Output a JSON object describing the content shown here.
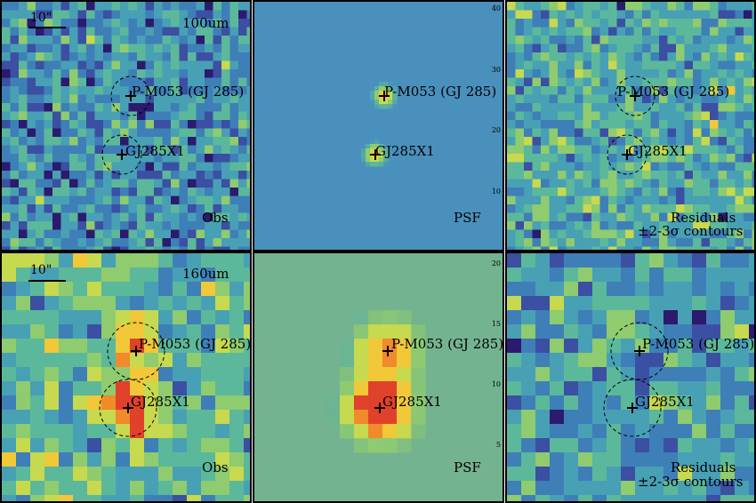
{
  "palette": [
    "#2b1a6e",
    "#3b4fa3",
    "#3e7fb8",
    "#48a0b5",
    "#5cb89a",
    "#8fcb6f",
    "#c6d94f",
    "#f0c838",
    "#f08a2a",
    "#e0412a"
  ],
  "panels": [
    {
      "id": "p100-obs",
      "seed": 11,
      "kind": "noise",
      "bias": 0.0,
      "band_label": "100um",
      "scalebar_label": "10\"",
      "corner_label": "Obs",
      "stars": [
        {
          "label": "P-M053 (GJ 285)",
          "circle": true
        },
        {
          "label": "GJ285X1",
          "circle": true
        }
      ]
    },
    {
      "id": "p100-psf",
      "seed": 0,
      "kind": "psf",
      "peak": "small",
      "corner_label": "PSF",
      "ticks": [
        "40",
        "30",
        "20",
        "10"
      ],
      "stars": [
        {
          "label": "P-M053 (GJ 285)",
          "circle": false
        },
        {
          "label": "GJ285X1",
          "circle": false
        }
      ]
    },
    {
      "id": "p100-res",
      "seed": 23,
      "kind": "noise",
      "bias": 0.8,
      "corner_label_1": "Residuals",
      "corner_label_2": "±2-3σ contours",
      "stars": [
        {
          "label": "P-M053 (GJ 285)",
          "circle": true
        },
        {
          "label": "GJ285X1",
          "circle": true
        }
      ]
    },
    {
      "id": "p160-obs",
      "seed": 37,
      "kind": "noise",
      "bias": 1.4,
      "band_label": "160um",
      "scalebar_label": "10\"",
      "corner_label": "Obs",
      "stars": [
        {
          "label": "P-M053 (GJ 285)",
          "circle": true
        },
        {
          "label": "GJ285X1",
          "circle": true
        }
      ]
    },
    {
      "id": "p160-psf",
      "seed": 0,
      "kind": "psf",
      "peak": "big",
      "corner_label": "PSF",
      "ticks": [
        "20",
        "15",
        "10",
        "5"
      ],
      "stars": [
        {
          "label": "P-M053 (GJ 285)",
          "circle": false
        },
        {
          "label": "GJ285X1",
          "circle": false
        }
      ]
    },
    {
      "id": "p160-res",
      "seed": 53,
      "kind": "noise",
      "bias": 0.3,
      "corner_label_1": "Residuals",
      "corner_label_2": "±2-3σ contours",
      "stars": [
        {
          "label": "P-M053 (GJ 285)",
          "circle": true
        },
        {
          "label": "GJ285X1",
          "circle": true
        }
      ]
    }
  ]
}
